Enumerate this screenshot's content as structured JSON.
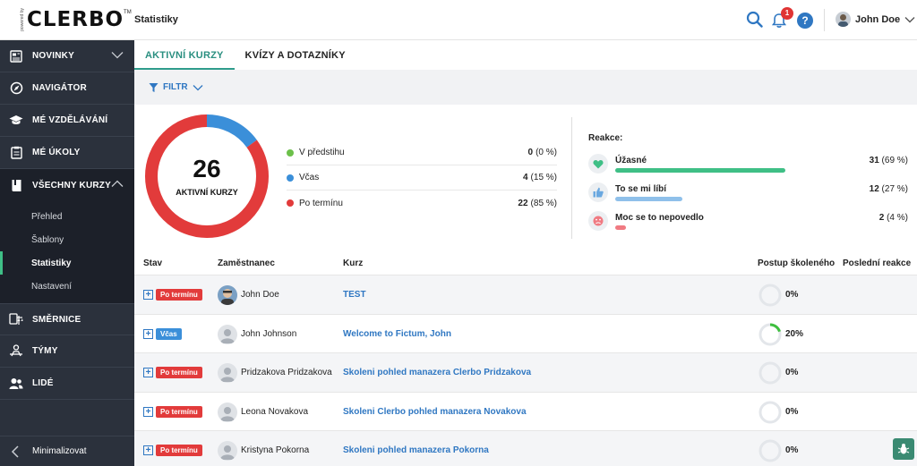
{
  "header": {
    "logo_text": "CLERBO",
    "logo_tag": "powered by",
    "logo_tm": "TM",
    "page_title": "Statistiky",
    "notification_count": "1",
    "help_label": "?",
    "user_name": "John Doe"
  },
  "sidebar": {
    "items": [
      {
        "label": "NOVINKY",
        "icon": "newspaper-icon"
      },
      {
        "label": "NAVIGÁTOR",
        "icon": "compass-icon"
      },
      {
        "label": "MÉ VZDĚLÁVÁNÍ",
        "icon": "graduation-cap-icon"
      },
      {
        "label": "MÉ ÚKOLY",
        "icon": "clipboard-icon"
      },
      {
        "label": "VŠECHNY KURZY",
        "icon": "book-icon"
      },
      {
        "label": "SMĚRNICE",
        "icon": "scale-icon"
      },
      {
        "label": "TÝMY",
        "icon": "team-icon"
      },
      {
        "label": "LIDÉ",
        "icon": "people-icon"
      }
    ],
    "sub_items": [
      "Přehled",
      "Šablony",
      "Statistiky",
      "Nastavení"
    ],
    "minimize_label": "Minimalizovat"
  },
  "tabs": [
    "AKTIVNÍ KURZY",
    "KVÍZY A DOTAZNÍKY"
  ],
  "filter_label": "FILTR",
  "summary": {
    "total": "26",
    "total_label": "AKTIVNÍ KURZY",
    "legend": [
      {
        "name": "V předstihu",
        "value": "0",
        "pct": "(0 %)",
        "fraction": 0.0,
        "color": "#6cc04a"
      },
      {
        "name": "Včas",
        "value": "4",
        "pct": "(15 %)",
        "fraction": 0.15,
        "color": "#3b8fd9"
      },
      {
        "name": "Po termínu",
        "value": "22",
        "pct": "(85 %)",
        "fraction": 0.85,
        "color": "#e23b3b"
      }
    ]
  },
  "reactions": {
    "title": "Reakce:",
    "items": [
      {
        "name": "Úžasné",
        "value": "31",
        "pct": "(69 %)",
        "fraction": 0.69,
        "color": "#3fbf86",
        "icon": "heart-icon"
      },
      {
        "name": "To se mi líbí",
        "value": "12",
        "pct": "(27 %)",
        "fraction": 0.27,
        "color": "#8fc0ea",
        "icon": "thumbs-up-icon"
      },
      {
        "name": "Moc se to nepovedlo",
        "value": "2",
        "pct": "(4 %)",
        "fraction": 0.04,
        "color": "#f07a82",
        "icon": "sad-face-icon"
      }
    ]
  },
  "table": {
    "columns": [
      "Stav",
      "Zaměstnanec",
      "Kurz",
      "Postup školeného",
      "Poslední reakce"
    ],
    "rows": [
      {
        "status": "Po termínu",
        "status_type": "late",
        "employee": "John Doe",
        "course": "TEST",
        "progress": "0%",
        "progress_value": 0
      },
      {
        "status": "Včas",
        "status_type": "ontime",
        "employee": "John Johnson",
        "course": "Welcome to Fictum, John",
        "progress": "20%",
        "progress_value": 0.2
      },
      {
        "status": "Po termínu",
        "status_type": "late",
        "employee": "Pridzakova Pridzakova",
        "course": "Skoleni pohled manazera Clerbo Pridzakova",
        "progress": "0%",
        "progress_value": 0
      },
      {
        "status": "Po termínu",
        "status_type": "late",
        "employee": "Leona Novakova",
        "course": "Skoleni Clerbo pohled manazera Novakova",
        "progress": "0%",
        "progress_value": 0
      },
      {
        "status": "Po termínu",
        "status_type": "late",
        "employee": "Kristyna Pokorna",
        "course": "Skoleni pohled manazera Pokorna",
        "progress": "0%",
        "progress_value": 0
      }
    ]
  }
}
